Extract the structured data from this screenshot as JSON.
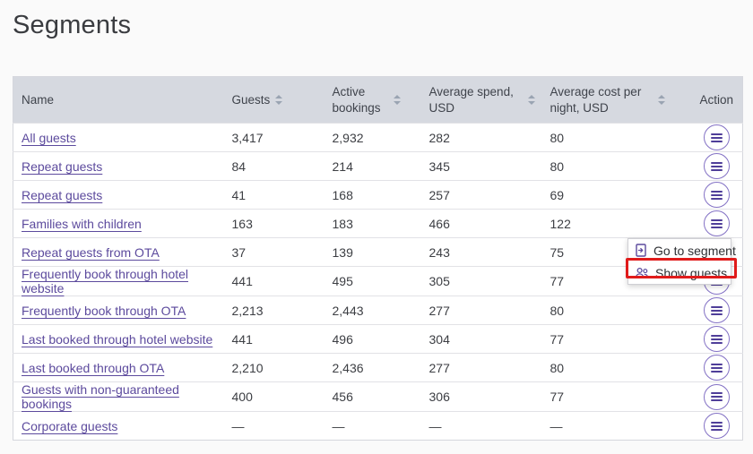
{
  "page": {
    "title": "Segments"
  },
  "colors": {
    "link_purple": "#5c4a9d",
    "header_bg": "#d6d9e0",
    "highlight_red": "#e01b1b",
    "action_border_purple": "#8472c5"
  },
  "table": {
    "columns": [
      {
        "label": "Name",
        "sortable": false
      },
      {
        "label": "Guests",
        "sortable": true
      },
      {
        "label": "Active bookings",
        "sortable": true
      },
      {
        "label": "Average spend, USD",
        "sortable": true
      },
      {
        "label": "Average cost per night, USD",
        "sortable": true
      },
      {
        "label": "Action",
        "sortable": false
      }
    ],
    "rows": [
      {
        "name": "All guests",
        "guests": "3,417",
        "active_bookings": "2,932",
        "average_spend": "282",
        "average_cost": "80"
      },
      {
        "name": "Repeat guests",
        "guests": "84",
        "active_bookings": "214",
        "average_spend": "345",
        "average_cost": "80"
      },
      {
        "name": "Repeat guests",
        "guests": "41",
        "active_bookings": "168",
        "average_spend": "257",
        "average_cost": "69"
      },
      {
        "name": "Families with children",
        "guests": "163",
        "active_bookings": "183",
        "average_spend": "466",
        "average_cost": "122"
      },
      {
        "name": "Repeat guests from OTA",
        "guests": "37",
        "active_bookings": "139",
        "average_spend": "243",
        "average_cost": "75"
      },
      {
        "name": "Frequently book through hotel website",
        "guests": "441",
        "active_bookings": "495",
        "average_spend": "305",
        "average_cost": "77"
      },
      {
        "name": "Frequently book through OTA",
        "guests": "2,213",
        "active_bookings": "2,443",
        "average_spend": "277",
        "average_cost": "80"
      },
      {
        "name": "Last booked through hotel website",
        "guests": "441",
        "active_bookings": "496",
        "average_spend": "304",
        "average_cost": "77"
      },
      {
        "name": "Last booked through OTA",
        "guests": "2,210",
        "active_bookings": "2,436",
        "average_spend": "277",
        "average_cost": "80"
      },
      {
        "name": "Guests with non-guaranteed bookings",
        "guests": "400",
        "active_bookings": "456",
        "average_spend": "306",
        "average_cost": "77"
      },
      {
        "name": "Corporate guests",
        "guests": "—",
        "active_bookings": "—",
        "average_spend": "—",
        "average_cost": "—"
      }
    ]
  },
  "context_menu": {
    "items": [
      {
        "label": "Go to segment",
        "icon": "go-to-segment-icon",
        "highlighted": false
      },
      {
        "label": "Show guests",
        "icon": "show-guests-icon",
        "highlighted": true
      }
    ]
  }
}
